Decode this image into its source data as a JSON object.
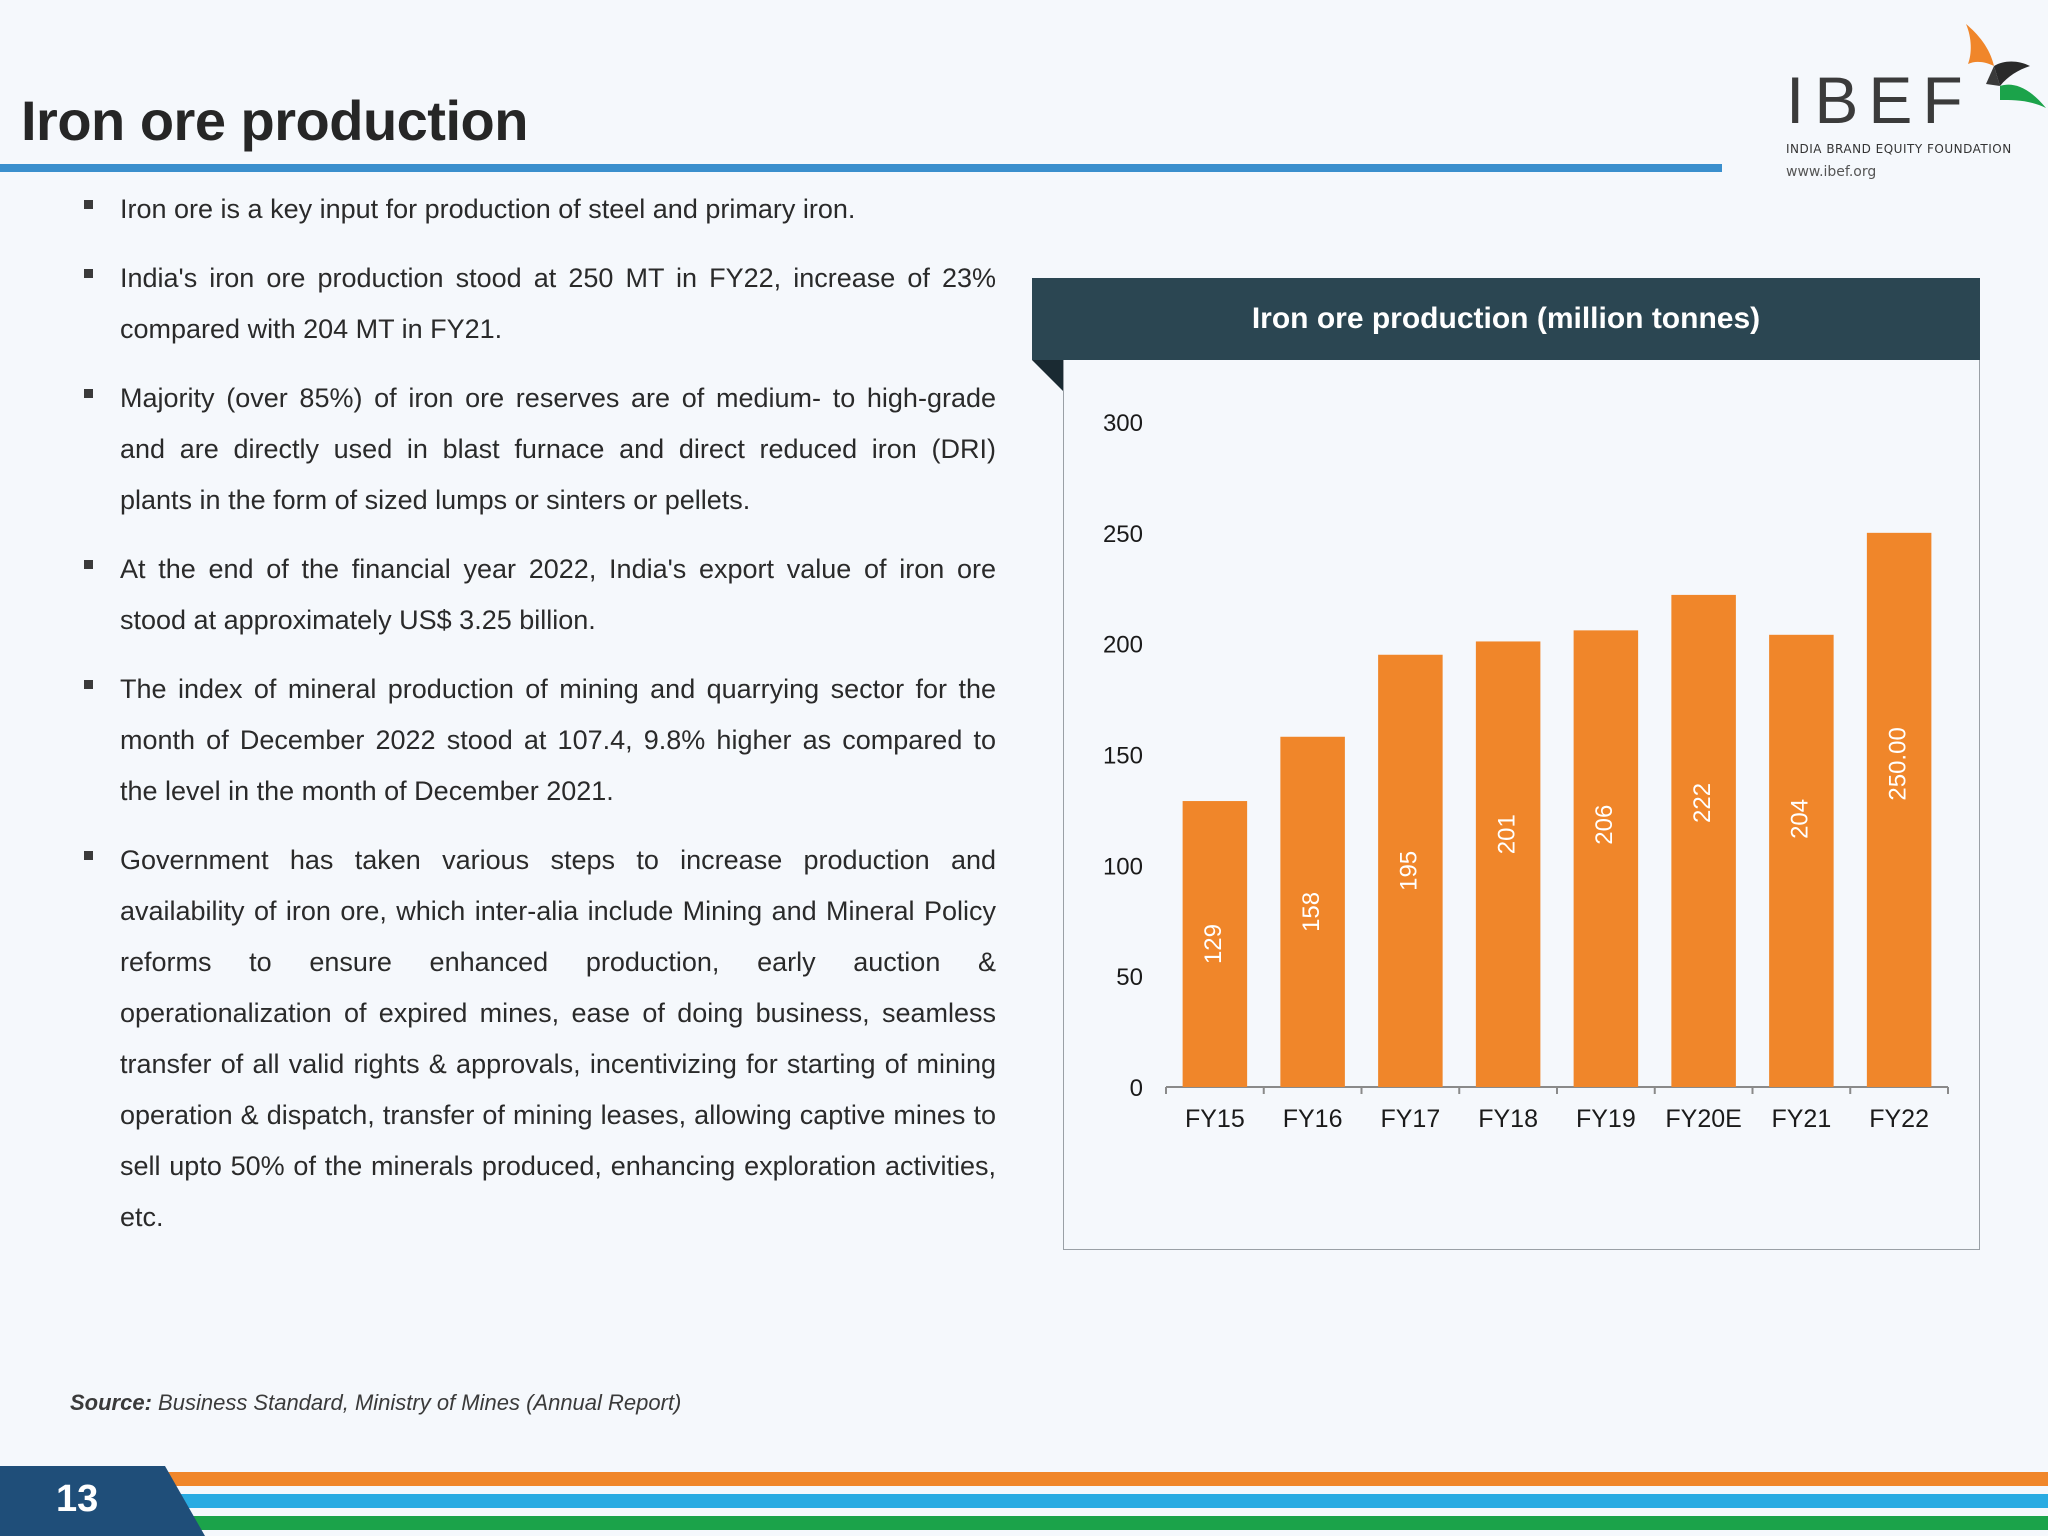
{
  "page": {
    "title": "Iron ore production",
    "page_number": "13"
  },
  "logo": {
    "name": "IBEF",
    "tagline": "INDIA BRAND EQUITY FOUNDATION",
    "url": "www.ibef.org"
  },
  "bullets": [
    "Iron ore is a key input for production of steel and primary iron.",
    "India's iron ore production stood at 250 MT in FY22, increase of 23% compared with 204 MT in FY21.",
    "Majority (over 85%) of iron ore reserves are of medium- to high-grade and are directly used in blast furnace and direct reduced iron (DRI) plants in the form of sized lumps or sinters or pellets.",
    "At the end of the financial year 2022, India's export value of iron ore stood at approximately US$ 3.25 billion.",
    "The index of mineral production of mining and quarrying sector for the month of December 2022 stood at 107.4, 9.8% higher as compared to the level in the month of December 2021.",
    "Government has taken various steps to increase production and availability of iron ore, which inter-alia include Mining and Mineral Policy reforms to ensure enhanced production, early auction & operationalization of expired mines, ease of doing business, seamless transfer of all valid rights & approvals, incentivizing for starting of mining operation & dispatch, transfer of mining leases, allowing captive mines to sell upto 50% of the minerals produced, enhancing exploration activities, etc."
  ],
  "source": {
    "label": "Source:",
    "text": "Business Standard, Ministry of Mines (Annual Report)"
  },
  "chart_data": {
    "type": "bar",
    "title": "Iron ore production (million tonnes)",
    "categories": [
      "FY15",
      "FY16",
      "FY17",
      "FY18",
      "FY19",
      "FY20E",
      "FY21",
      "FY22"
    ],
    "values": [
      129,
      158,
      195,
      201,
      206,
      222,
      204,
      250
    ],
    "data_labels": [
      "129",
      "158",
      "195",
      "201",
      "206",
      "222",
      "204",
      "250.00"
    ],
    "ylim": [
      0,
      300
    ],
    "yticks": [
      0,
      50,
      100,
      150,
      200,
      250,
      300
    ],
    "xlabel": "",
    "ylabel": "",
    "grid": false,
    "legend": "none",
    "bar_color": "#f0862a"
  },
  "colors": {
    "title_rule": "#3a8fcd",
    "header_bg": "#2b4652",
    "footer_navy": "#1f4e79",
    "footer_orange": "#f0862a",
    "footer_blue": "#29abe2",
    "footer_green": "#1ba34a"
  }
}
